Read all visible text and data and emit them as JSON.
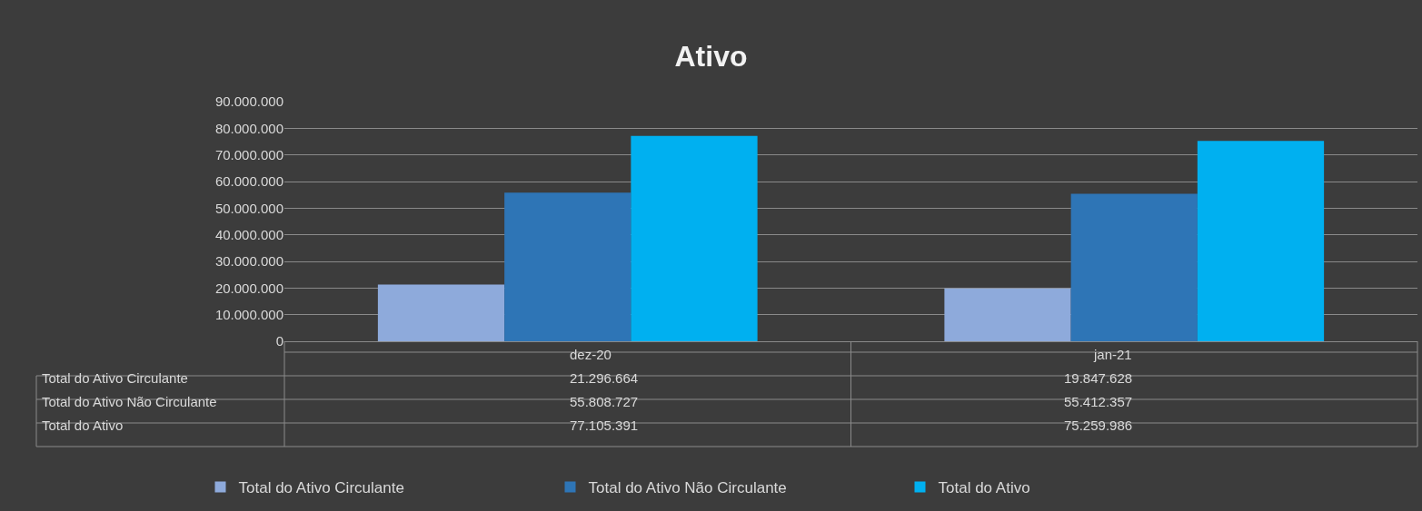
{
  "chart_data": {
    "type": "bar",
    "title": "Ativo",
    "categories": [
      "dez-20",
      "jan-21"
    ],
    "series": [
      {
        "name": "Total do Ativo Circulante",
        "color": "#8eaadb",
        "values": [
          21296664,
          19847628
        ],
        "value_labels": [
          "21.296.664",
          "19.847.628"
        ]
      },
      {
        "name": "Total do Ativo Não Circulante",
        "color": "#2e75b6",
        "values": [
          55808727,
          55412357
        ],
        "value_labels": [
          "55.808.727",
          "55.412.357"
        ]
      },
      {
        "name": "Total do Ativo",
        "color": "#00b0f0",
        "values": [
          77105391,
          75259986
        ],
        "value_labels": [
          "77.105.391",
          "75.259.986"
        ]
      }
    ],
    "ylim": [
      0,
      90000000
    ],
    "yticks": [
      {
        "value": 0,
        "label": "0"
      },
      {
        "value": 10000000,
        "label": "10.000.000"
      },
      {
        "value": 20000000,
        "label": "20.000.000"
      },
      {
        "value": 30000000,
        "label": "30.000.000"
      },
      {
        "value": 40000000,
        "label": "40.000.000"
      },
      {
        "value": 50000000,
        "label": "50.000.000"
      },
      {
        "value": 60000000,
        "label": "60.000.000"
      },
      {
        "value": 70000000,
        "label": "70.000.000"
      },
      {
        "value": 80000000,
        "label": "80.000.000"
      },
      {
        "value": 90000000,
        "label": "90.000.000"
      }
    ],
    "grid": "y",
    "legend": "bottom"
  }
}
